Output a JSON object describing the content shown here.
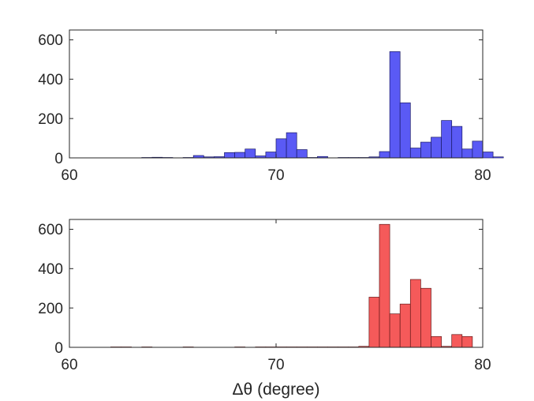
{
  "chart_data": [
    {
      "type": "bar",
      "color": "#5a5af5",
      "edge_color": "#1a1a66",
      "bin_width": 0.5,
      "xlim": [
        60,
        80
      ],
      "ylim": [
        0,
        650
      ],
      "xticks": [
        "60",
        "70",
        "80"
      ],
      "yticks": [
        "0",
        "200",
        "400",
        "600"
      ],
      "xlabel": "",
      "ylabel": "",
      "bins": [
        {
          "x": 63.75,
          "y": 2
        },
        {
          "x": 64.25,
          "y": 3
        },
        {
          "x": 64.75,
          "y": 2
        },
        {
          "x": 65.75,
          "y": 2
        },
        {
          "x": 66.25,
          "y": 12
        },
        {
          "x": 66.75,
          "y": 5
        },
        {
          "x": 67.25,
          "y": 6
        },
        {
          "x": 67.75,
          "y": 27
        },
        {
          "x": 68.25,
          "y": 28
        },
        {
          "x": 68.75,
          "y": 45
        },
        {
          "x": 69.25,
          "y": 10
        },
        {
          "x": 69.75,
          "y": 30
        },
        {
          "x": 70.25,
          "y": 97
        },
        {
          "x": 70.75,
          "y": 128
        },
        {
          "x": 71.25,
          "y": 42
        },
        {
          "x": 71.75,
          "y": 2
        },
        {
          "x": 72.25,
          "y": 7
        },
        {
          "x": 73.25,
          "y": 2
        },
        {
          "x": 73.75,
          "y": 2
        },
        {
          "x": 74.25,
          "y": 2
        },
        {
          "x": 74.75,
          "y": 5
        },
        {
          "x": 75.25,
          "y": 32
        },
        {
          "x": 75.75,
          "y": 540
        },
        {
          "x": 76.25,
          "y": 280
        },
        {
          "x": 76.75,
          "y": 50
        },
        {
          "x": 77.25,
          "y": 80
        },
        {
          "x": 77.75,
          "y": 105
        },
        {
          "x": 78.25,
          "y": 190
        },
        {
          "x": 78.75,
          "y": 160
        },
        {
          "x": 79.25,
          "y": 45
        },
        {
          "x": 79.75,
          "y": 85
        },
        {
          "x": 80.25,
          "y": 30
        },
        {
          "x": 80.75,
          "y": 5
        }
      ]
    },
    {
      "type": "bar",
      "color": "#f55a5a",
      "edge_color": "#661a1a",
      "bin_width": 0.5,
      "xlim": [
        60,
        80
      ],
      "ylim": [
        0,
        650
      ],
      "xticks": [
        "60",
        "70",
        "80"
      ],
      "yticks": [
        "0",
        "200",
        "400",
        "600"
      ],
      "xlabel": "Δθ (degree)",
      "ylabel": "",
      "bins": [
        {
          "x": 62.25,
          "y": 2
        },
        {
          "x": 62.75,
          "y": 2
        },
        {
          "x": 63.75,
          "y": 2
        },
        {
          "x": 65.75,
          "y": 2
        },
        {
          "x": 68.25,
          "y": 2
        },
        {
          "x": 69.25,
          "y": 2
        },
        {
          "x": 69.75,
          "y": 2
        },
        {
          "x": 70.25,
          "y": 2
        },
        {
          "x": 70.75,
          "y": 2
        },
        {
          "x": 71.25,
          "y": 2
        },
        {
          "x": 71.75,
          "y": 2
        },
        {
          "x": 72.25,
          "y": 2
        },
        {
          "x": 72.75,
          "y": 2
        },
        {
          "x": 73.25,
          "y": 2
        },
        {
          "x": 73.75,
          "y": 2
        },
        {
          "x": 74.25,
          "y": 5
        },
        {
          "x": 74.75,
          "y": 255
        },
        {
          "x": 75.25,
          "y": 625
        },
        {
          "x": 75.75,
          "y": 170
        },
        {
          "x": 76.25,
          "y": 220
        },
        {
          "x": 76.75,
          "y": 345
        },
        {
          "x": 77.25,
          "y": 300
        },
        {
          "x": 77.75,
          "y": 55
        },
        {
          "x": 78.25,
          "y": 5
        },
        {
          "x": 78.75,
          "y": 65
        },
        {
          "x": 79.25,
          "y": 55
        }
      ]
    }
  ]
}
